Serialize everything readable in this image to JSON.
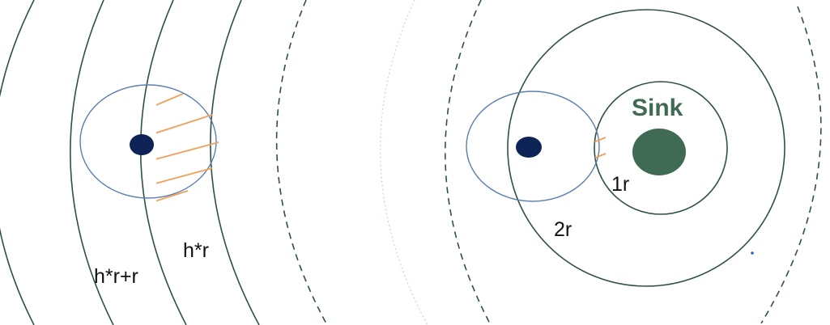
{
  "labels": {
    "left_inner": "h*r",
    "left_outer": "h*r+r",
    "sink": "Sink",
    "ring_1": "1r",
    "ring_2": "2r"
  },
  "colors": {
    "ring_stroke": "#2f5143",
    "node_range": "#5b7fb3",
    "node_fill": "#0e2356",
    "hatch": "#f0a05a",
    "sink_fill": "#3f6a54",
    "sink_label": "#3f6a54",
    "label_text": "#111111",
    "faint_arc": "#f5c9a8",
    "marker": "#2b5bd7"
  }
}
